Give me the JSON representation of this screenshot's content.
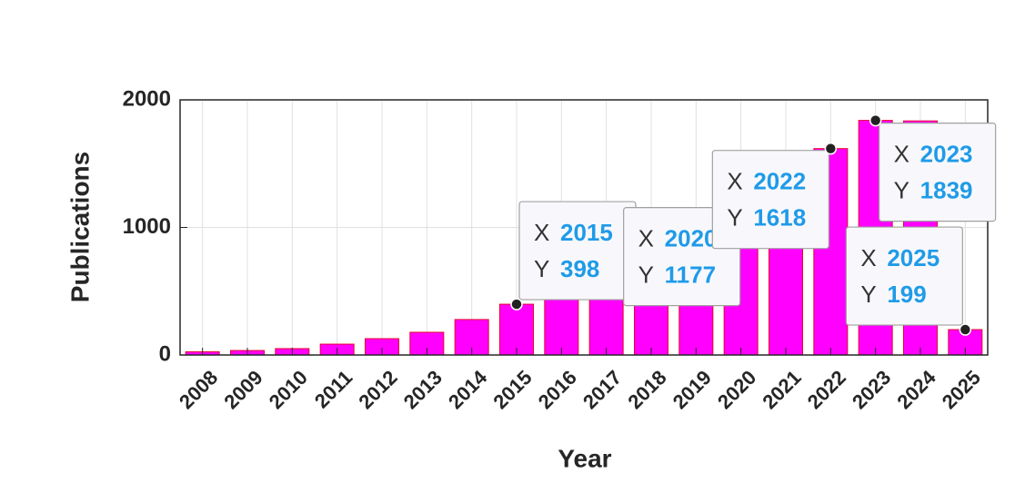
{
  "chart_data": {
    "type": "bar",
    "xlabel": "Year",
    "ylabel": "Publications",
    "categories": [
      "2008",
      "2009",
      "2010",
      "2011",
      "2012",
      "2013",
      "2014",
      "2015",
      "2016",
      "2017",
      "2018",
      "2019",
      "2020",
      "2021",
      "2022",
      "2023",
      "2024",
      "2025"
    ],
    "values": [
      25,
      35,
      50,
      85,
      128,
      178,
      278,
      398,
      700,
      850,
      950,
      1050,
      1177,
      1400,
      1618,
      1839,
      1835,
      199
    ],
    "color": "#ff00ff",
    "edge_color": "#e8002a",
    "ylim": [
      0,
      2000
    ],
    "yticks": [
      0,
      1000,
      2000
    ],
    "grid": true,
    "datatip_labels": [
      "X",
      "Y"
    ],
    "datatips": [
      "2015",
      "2020",
      "2022",
      "2023",
      "2025"
    ]
  }
}
